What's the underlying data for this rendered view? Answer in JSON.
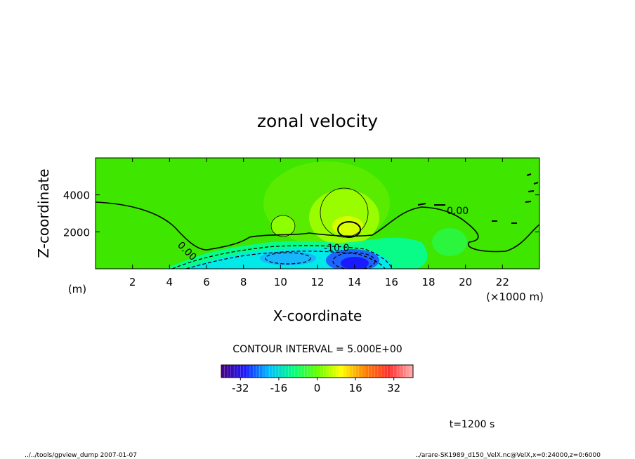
{
  "chart_data": {
    "type": "heatmap",
    "title": "zonal velocity",
    "xlabel": "X-coordinate",
    "ylabel": "Z-coordinate",
    "x_unit": "(×1000 m)",
    "y_unit": "(m)",
    "xlim": [
      0,
      24
    ],
    "ylim": [
      0,
      6000
    ],
    "x_ticks": [
      2,
      4,
      6,
      8,
      10,
      12,
      14,
      16,
      18,
      20,
      22
    ],
    "y_ticks": [
      2000,
      4000
    ],
    "contour_interval_text": "CONTOUR INTERVAL = 5.000E+00",
    "contour_labels": [
      "0.00",
      "0.00",
      "-10.0"
    ],
    "colorbar": {
      "range": [
        -40,
        40
      ],
      "ticks": [
        -32,
        -16,
        0,
        16,
        32
      ],
      "colors": [
        "#4b0082",
        "#1a1aff",
        "#00bfff",
        "#00ff7f",
        "#66ff00",
        "#ffff00",
        "#ff8000",
        "#ff3030",
        "#ffb0b0"
      ]
    },
    "field_features": [
      {
        "kind": "max",
        "x": 13.8,
        "z": 2200,
        "value": 12
      },
      {
        "kind": "max",
        "x": 10.1,
        "z": 2200,
        "value": 6
      },
      {
        "kind": "min",
        "x": 14.0,
        "z": 300,
        "value": -30
      },
      {
        "kind": "min",
        "x": 10.5,
        "z": 700,
        "value": -18
      }
    ],
    "background_value": 3
  },
  "time_label": "t=1200 s",
  "footer_left": "../../tools/gpview_dump  2007-01-07",
  "footer_right": "../arare-SK1989_d150_VelX.nc@VelX,x=0:24000,z=0:6000"
}
